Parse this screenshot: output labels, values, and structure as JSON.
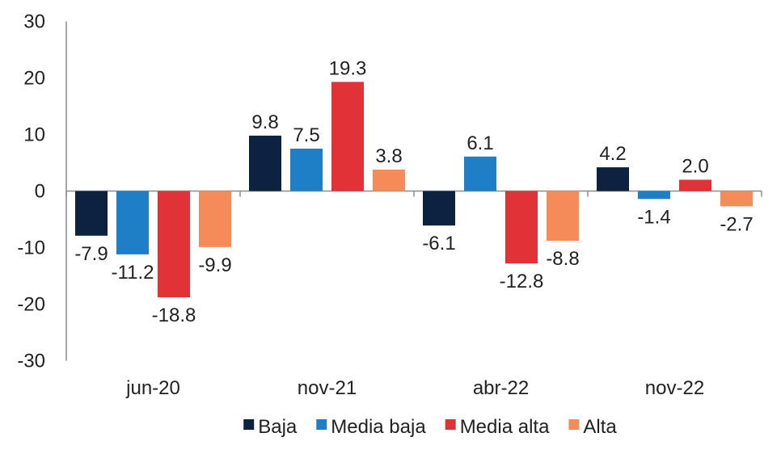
{
  "chart_data": {
    "type": "bar",
    "title": "",
    "xlabel": "",
    "ylabel": "",
    "ylim": [
      -30,
      30
    ],
    "yticks": [
      30,
      20,
      10,
      0,
      -10,
      -20,
      -30
    ],
    "grid": false,
    "legend_position": "bottom",
    "categories": [
      "jun-20",
      "nov-21",
      "abr-22",
      "nov-22"
    ],
    "series": [
      {
        "name": "Baja",
        "color": "#0d2240",
        "values": [
          -7.9,
          9.8,
          -6.1,
          4.2
        ],
        "labels": [
          "-7.9",
          "9.8",
          "-6.1",
          "4.2"
        ]
      },
      {
        "name": "Media baja",
        "color": "#1f7fc6",
        "values": [
          -11.2,
          7.5,
          6.1,
          -1.4
        ],
        "labels": [
          "-11.2",
          "7.5",
          "6.1",
          "-1.4"
        ]
      },
      {
        "name": "Media alta",
        "color": "#e03237",
        "values": [
          -18.8,
          19.3,
          -12.8,
          2.0
        ],
        "labels": [
          "-18.8",
          "19.3",
          "-12.8",
          "2.0"
        ]
      },
      {
        "name": "Alta",
        "color": "#f68b5a",
        "values": [
          -9.9,
          3.8,
          -8.8,
          -2.7
        ],
        "labels": [
          "-9.9",
          "3.8",
          "-8.8",
          "-2.7"
        ]
      }
    ]
  }
}
